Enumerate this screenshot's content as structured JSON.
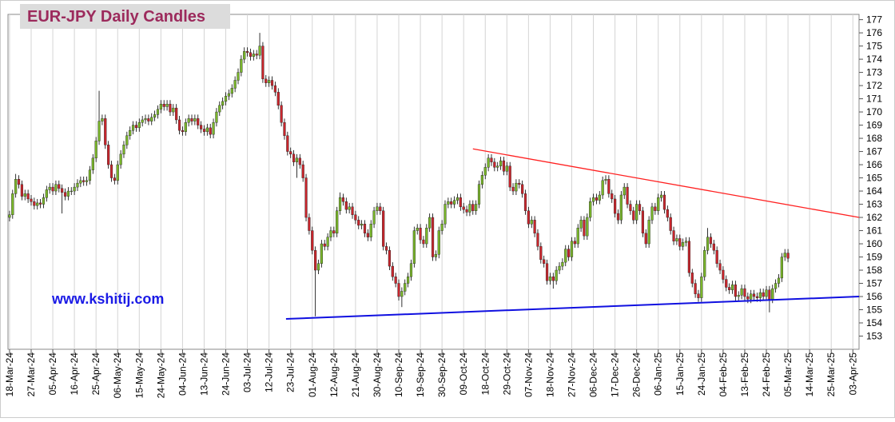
{
  "chart_data": {
    "type": "candlestick",
    "title": "EUR-JPY Daily  Candles",
    "annotation": "www.kshitij.com",
    "up_color": "#79b52a",
    "down_color": "#c8252c",
    "grid": true,
    "ylim": [
      152,
      177.4
    ],
    "yticks": [
      153,
      154,
      155,
      156,
      157,
      158,
      159,
      160,
      161,
      162,
      163,
      164,
      165,
      166,
      167,
      168,
      169,
      170,
      171,
      172,
      173,
      174,
      175,
      176,
      177
    ],
    "xlim": [
      -0.5,
      275
    ],
    "xticks": [
      {
        "value": 0,
        "label": "18-Mar-24"
      },
      {
        "value": 7,
        "label": "27-Mar-24"
      },
      {
        "value": 14,
        "label": "05-Apr-24"
      },
      {
        "value": 21,
        "label": "16-Apr-24"
      },
      {
        "value": 28,
        "label": "25-Apr-24"
      },
      {
        "value": 35,
        "label": "06-May-24"
      },
      {
        "value": 42,
        "label": "15-May-24"
      },
      {
        "value": 49,
        "label": "24-May-24"
      },
      {
        "value": 56,
        "label": "04-Jun-24"
      },
      {
        "value": 63,
        "label": "13-Jun-24"
      },
      {
        "value": 70,
        "label": "24-Jun-24"
      },
      {
        "value": 77,
        "label": "03-Jul-24"
      },
      {
        "value": 84,
        "label": "12-Jul-24"
      },
      {
        "value": 91,
        "label": "23-Jul-24"
      },
      {
        "value": 98,
        "label": "01-Aug-24"
      },
      {
        "value": 105,
        "label": "12-Aug-24"
      },
      {
        "value": 112,
        "label": "21-Aug-24"
      },
      {
        "value": 119,
        "label": "30-Aug-24"
      },
      {
        "value": 126,
        "label": "10-Sep-24"
      },
      {
        "value": 133,
        "label": "19-Sep-24"
      },
      {
        "value": 140,
        "label": "30-Sep-24"
      },
      {
        "value": 147,
        "label": "09-Oct-24"
      },
      {
        "value": 154,
        "label": "18-Oct-24"
      },
      {
        "value": 161,
        "label": "29-Oct-24"
      },
      {
        "value": 168,
        "label": "07-Nov-24"
      },
      {
        "value": 175,
        "label": "18-Nov-24"
      },
      {
        "value": 182,
        "label": "27-Nov-24"
      },
      {
        "value": 189,
        "label": "06-Dec-24"
      },
      {
        "value": 196,
        "label": "17-Dec-24"
      },
      {
        "value": 203,
        "label": "26-Dec-24"
      },
      {
        "value": 210,
        "label": "06-Jan-25"
      },
      {
        "value": 217,
        "label": "15-Jan-25"
      },
      {
        "value": 224,
        "label": "24-Jan-25"
      },
      {
        "value": 231,
        "label": "04-Feb-25"
      },
      {
        "value": 238,
        "label": "13-Feb-25"
      },
      {
        "value": 245,
        "label": "24-Feb-25"
      },
      {
        "value": 252,
        "label": "05-Mar-25"
      },
      {
        "value": 259,
        "label": "14-Mar-25"
      },
      {
        "value": 266,
        "label": "25-Mar-25"
      },
      {
        "value": 273,
        "label": "03-Apr-25"
      }
    ],
    "open": [
      162.0,
      162.2,
      163.8,
      164.9,
      164.5,
      163.6,
      163.8,
      163.4,
      163.2,
      162.9,
      163.1,
      163.0,
      163.5,
      164.1,
      164.3,
      164.0,
      164.5,
      164.2,
      163.9,
      163.6,
      164.0,
      164.0,
      164.3,
      164.6,
      164.8,
      164.7,
      164.8,
      165.6,
      166.5,
      167.8,
      169.3,
      169.5,
      167.5,
      166.0,
      165.0,
      164.8,
      166.0,
      166.8,
      167.5,
      168.2,
      168.6,
      169.0,
      168.8,
      169.2,
      169.4,
      169.5,
      169.3,
      169.6,
      169.8,
      170.2,
      170.6,
      170.4,
      170.6,
      170.0,
      170.3,
      169.4,
      168.6,
      168.5,
      169.2,
      169.5,
      169.3,
      169.5,
      169.0,
      168.7,
      168.5,
      168.8,
      168.3,
      169.2,
      170.0,
      170.5,
      170.8,
      171.2,
      171.4,
      171.8,
      172.4,
      173.0,
      174.0,
      174.6,
      174.5,
      174.2,
      174.4,
      174.3,
      175.0,
      172.5,
      172.2,
      172.4,
      172.0,
      171.5,
      170.5,
      169.2,
      168.2,
      167.0,
      166.8,
      166.2,
      166.5,
      166.0,
      165.0,
      162.0,
      161.0,
      159.5,
      158.0,
      158.5,
      160.0,
      159.8,
      160.5,
      161.0,
      160.8,
      162.5,
      163.5,
      163.2,
      162.6,
      162.8,
      162.2,
      161.8,
      161.4,
      161.5,
      160.8,
      160.5,
      161.5,
      162.5,
      162.8,
      162.5,
      159.8,
      159.5,
      158.3,
      157.5,
      157.0,
      156.0,
      156.4,
      157.0,
      157.5,
      158.5,
      161.0,
      161.2,
      160.3,
      160.0,
      161.2,
      162.0,
      159.0,
      159.2,
      161.0,
      161.5,
      163.0,
      163.2,
      163.0,
      163.3,
      163.5,
      162.8,
      162.6,
      162.4,
      163.0,
      162.5,
      163.0,
      164.5,
      165.2,
      165.8,
      166.5,
      166.2,
      165.8,
      165.9,
      166.3,
      165.5,
      165.9,
      164.3,
      164.0,
      164.6,
      164.5,
      163.8,
      162.5,
      161.5,
      161.8,
      160.8,
      159.8,
      158.8,
      158.5,
      157.2,
      157.5,
      157.2,
      158.0,
      158.3,
      158.6,
      159.6,
      159.0,
      160.2,
      160.0,
      161.2,
      161.8,
      160.6,
      162.0,
      163.2,
      163.5,
      163.3,
      163.7,
      164.8,
      164.9,
      163.8,
      163.4,
      162.3,
      161.8,
      163.7,
      164.3,
      163.0,
      162.5,
      161.8,
      163.0,
      162.5,
      160.8,
      160.0,
      161.8,
      162.8,
      162.5,
      163.5,
      163.7,
      162.6,
      162.0,
      161.0,
      160.2,
      160.4,
      159.8,
      160.1,
      160.2,
      157.8,
      157.0,
      156.2,
      155.9,
      157.5,
      159.5,
      160.5,
      160.0,
      159.5,
      158.5,
      158.0,
      157.3,
      156.7,
      156.5,
      156.9,
      156.0,
      156.1,
      156.6,
      156.0,
      155.8,
      156.2,
      156.0,
      155.9,
      156.3,
      156.0,
      156.5,
      155.8,
      156.6,
      157.0,
      157.4,
      159.0,
      159.3
    ],
    "high": [
      162.5,
      164.1,
      165.3,
      165.2,
      164.8,
      164.1,
      164.1,
      163.7,
      163.5,
      163.4,
      163.4,
      163.8,
      164.4,
      164.6,
      164.6,
      164.8,
      164.8,
      164.5,
      164.2,
      164.3,
      164.3,
      164.6,
      164.9,
      165.1,
      165.1,
      165.1,
      165.9,
      166.8,
      168.1,
      171.6,
      169.8,
      169.8,
      167.8,
      166.3,
      165.3,
      166.3,
      167.1,
      167.8,
      168.5,
      168.9,
      169.3,
      169.3,
      169.5,
      169.7,
      169.8,
      169.8,
      169.9,
      170.1,
      170.5,
      170.9,
      170.9,
      170.9,
      170.9,
      170.6,
      170.6,
      169.7,
      168.9,
      169.5,
      169.8,
      169.8,
      169.8,
      169.8,
      169.3,
      169.0,
      169.1,
      169.1,
      169.5,
      170.3,
      170.8,
      171.1,
      171.5,
      171.7,
      172.1,
      172.7,
      173.3,
      174.3,
      174.9,
      174.9,
      174.8,
      174.7,
      174.7,
      176.0,
      175.3,
      172.8,
      172.7,
      172.7,
      172.3,
      171.8,
      170.8,
      169.5,
      168.5,
      167.3,
      167.1,
      166.8,
      166.8,
      166.3,
      165.3,
      162.3,
      161.3,
      159.8,
      158.8,
      160.3,
      160.3,
      160.8,
      161.3,
      161.3,
      162.8,
      163.9,
      163.8,
      163.5,
      163.1,
      163.1,
      162.5,
      162.1,
      161.8,
      161.8,
      161.1,
      161.8,
      162.8,
      163.1,
      163.1,
      162.8,
      160.1,
      159.8,
      158.6,
      157.8,
      157.3,
      156.7,
      157.3,
      157.8,
      158.8,
      161.3,
      161.5,
      161.5,
      160.6,
      161.5,
      162.3,
      162.3,
      159.5,
      161.3,
      161.8,
      163.3,
      163.5,
      163.5,
      163.6,
      163.8,
      163.8,
      163.1,
      162.9,
      163.3,
      163.3,
      163.3,
      164.8,
      165.5,
      166.1,
      166.8,
      166.8,
      166.5,
      166.2,
      166.6,
      166.6,
      166.2,
      166.2,
      164.6,
      164.9,
      164.9,
      164.8,
      164.1,
      162.8,
      162.1,
      162.1,
      161.1,
      160.1,
      159.1,
      158.8,
      157.8,
      157.8,
      158.3,
      158.6,
      158.9,
      159.9,
      159.9,
      160.5,
      160.5,
      161.5,
      162.1,
      162.1,
      162.3,
      163.5,
      163.8,
      163.8,
      164.0,
      165.1,
      165.2,
      165.2,
      164.1,
      163.7,
      162.6,
      164.0,
      164.6,
      164.6,
      163.3,
      162.8,
      163.3,
      163.3,
      162.8,
      161.1,
      162.1,
      163.1,
      163.1,
      163.8,
      164.0,
      164.0,
      162.9,
      162.3,
      161.3,
      160.7,
      160.7,
      160.4,
      160.5,
      160.5,
      158.1,
      157.3,
      156.5,
      157.8,
      159.8,
      161.2,
      160.8,
      160.3,
      159.8,
      158.8,
      158.3,
      157.6,
      157.0,
      157.2,
      157.2,
      156.4,
      156.9,
      156.9,
      156.3,
      156.5,
      156.5,
      156.3,
      156.6,
      156.6,
      156.8,
      156.8,
      156.9,
      157.3,
      157.7,
      159.3,
      159.6,
      159.6
    ],
    "low": [
      161.7,
      161.9,
      163.5,
      164.2,
      163.3,
      163.3,
      163.1,
      162.9,
      162.6,
      162.6,
      162.7,
      162.7,
      163.2,
      163.8,
      163.7,
      163.7,
      163.9,
      162.3,
      163.3,
      163.3,
      163.7,
      163.7,
      164.0,
      164.3,
      164.4,
      164.4,
      164.5,
      165.3,
      166.2,
      167.5,
      169.0,
      167.2,
      165.7,
      164.7,
      164.5,
      164.5,
      165.7,
      166.5,
      167.2,
      167.9,
      168.3,
      168.5,
      168.5,
      168.9,
      169.1,
      169.0,
      169.0,
      169.3,
      169.5,
      169.9,
      170.1,
      170.1,
      169.7,
      169.7,
      169.1,
      168.3,
      168.2,
      168.2,
      168.9,
      169.0,
      169.0,
      168.7,
      168.4,
      168.2,
      168.2,
      168.0,
      168.0,
      168.9,
      169.7,
      170.2,
      170.5,
      170.9,
      171.1,
      171.5,
      172.1,
      172.7,
      173.7,
      174.2,
      173.9,
      173.9,
      174.0,
      174.0,
      172.2,
      171.9,
      171.9,
      171.7,
      171.2,
      170.2,
      168.9,
      167.9,
      166.7,
      166.5,
      165.9,
      165.0,
      165.7,
      164.7,
      161.7,
      160.7,
      159.2,
      154.5,
      157.7,
      158.2,
      159.5,
      159.5,
      160.2,
      160.5,
      160.5,
      162.2,
      162.9,
      162.3,
      162.3,
      161.9,
      161.5,
      161.1,
      161.1,
      160.5,
      160.2,
      160.2,
      161.2,
      162.2,
      162.2,
      159.5,
      159.2,
      158.0,
      157.2,
      156.7,
      155.7,
      155.2,
      156.1,
      156.7,
      157.2,
      158.2,
      160.7,
      160.0,
      159.7,
      159.7,
      160.9,
      158.7,
      158.7,
      158.9,
      160.7,
      161.2,
      162.7,
      162.7,
      162.7,
      163.0,
      162.5,
      162.3,
      162.1,
      162.1,
      162.2,
      162.2,
      162.7,
      164.2,
      164.9,
      165.5,
      165.9,
      165.5,
      165.5,
      165.6,
      165.2,
      165.2,
      164.0,
      163.7,
      163.7,
      164.2,
      163.5,
      162.2,
      161.2,
      161.2,
      160.5,
      159.5,
      158.5,
      158.2,
      156.9,
      156.9,
      156.6,
      156.9,
      157.7,
      158.0,
      158.3,
      158.7,
      158.7,
      159.7,
      159.7,
      160.9,
      160.3,
      160.3,
      161.7,
      162.9,
      163.0,
      163.0,
      163.4,
      164.5,
      163.5,
      163.1,
      162.0,
      161.5,
      161.5,
      163.4,
      162.7,
      162.2,
      161.5,
      161.5,
      162.2,
      160.5,
      159.7,
      159.7,
      161.5,
      162.2,
      162.2,
      163.2,
      162.3,
      161.7,
      160.7,
      159.9,
      159.9,
      159.5,
      159.5,
      159.8,
      157.5,
      156.7,
      155.9,
      155.6,
      155.6,
      157.2,
      159.2,
      159.7,
      159.2,
      158.2,
      157.7,
      157.0,
      156.4,
      156.2,
      156.2,
      155.7,
      155.7,
      155.8,
      155.7,
      155.5,
      155.5,
      155.7,
      155.6,
      155.6,
      155.7,
      155.7,
      154.8,
      155.5,
      156.3,
      156.7,
      157.1,
      158.7,
      158.6
    ],
    "close": [
      162.2,
      163.8,
      164.9,
      164.5,
      163.6,
      163.8,
      163.4,
      163.2,
      162.9,
      163.1,
      163.0,
      163.5,
      164.1,
      164.3,
      164.0,
      164.5,
      164.2,
      163.9,
      163.6,
      164.0,
      164.0,
      164.3,
      164.6,
      164.8,
      164.7,
      164.8,
      165.6,
      166.5,
      167.8,
      169.3,
      169.5,
      167.5,
      166.0,
      165.0,
      164.8,
      166.0,
      166.8,
      167.5,
      168.2,
      168.6,
      169.0,
      168.8,
      169.2,
      169.4,
      169.5,
      169.3,
      169.6,
      169.8,
      170.2,
      170.6,
      170.4,
      170.6,
      170.0,
      170.3,
      169.4,
      168.6,
      168.5,
      169.2,
      169.5,
      169.3,
      169.5,
      169.0,
      168.7,
      168.5,
      168.8,
      168.3,
      169.2,
      170.0,
      170.5,
      170.8,
      171.2,
      171.4,
      171.8,
      172.4,
      173.0,
      174.0,
      174.6,
      174.5,
      174.2,
      174.4,
      174.3,
      175.0,
      172.5,
      172.2,
      172.4,
      172.0,
      171.5,
      170.5,
      169.2,
      168.2,
      167.0,
      166.8,
      166.2,
      166.5,
      166.0,
      165.0,
      162.0,
      161.0,
      159.5,
      158.0,
      158.5,
      160.0,
      159.8,
      160.5,
      161.0,
      160.8,
      162.5,
      163.5,
      163.2,
      162.6,
      162.8,
      162.2,
      161.8,
      161.4,
      161.5,
      160.8,
      160.5,
      161.5,
      162.5,
      162.8,
      162.5,
      159.8,
      159.5,
      158.3,
      157.5,
      157.0,
      156.0,
      156.4,
      157.0,
      157.5,
      158.5,
      161.0,
      161.2,
      160.3,
      160.0,
      161.2,
      162.0,
      159.0,
      159.2,
      161.0,
      161.5,
      163.0,
      163.2,
      163.0,
      163.3,
      163.5,
      162.8,
      162.6,
      162.4,
      163.0,
      162.5,
      163.0,
      164.5,
      165.2,
      165.8,
      166.5,
      166.2,
      165.8,
      165.9,
      166.3,
      165.5,
      165.9,
      164.3,
      164.0,
      164.6,
      164.5,
      163.8,
      162.5,
      161.5,
      161.8,
      160.8,
      159.8,
      158.8,
      158.5,
      157.2,
      157.5,
      157.2,
      158.0,
      158.3,
      158.6,
      159.6,
      159.0,
      160.2,
      160.0,
      161.2,
      161.8,
      160.6,
      162.0,
      163.2,
      163.5,
      163.3,
      163.7,
      164.8,
      164.9,
      163.8,
      163.4,
      162.3,
      161.8,
      163.7,
      164.3,
      163.0,
      162.5,
      161.8,
      163.0,
      162.5,
      160.8,
      160.0,
      161.8,
      162.8,
      162.5,
      163.5,
      163.7,
      162.6,
      162.0,
      161.0,
      160.2,
      160.4,
      159.8,
      160.1,
      160.2,
      157.8,
      157.0,
      156.2,
      155.9,
      157.5,
      159.5,
      160.5,
      160.0,
      159.5,
      158.5,
      158.0,
      157.3,
      156.7,
      156.5,
      156.9,
      156.0,
      156.1,
      156.6,
      156.0,
      155.8,
      156.2,
      156.0,
      155.9,
      156.3,
      156.0,
      156.5,
      155.8,
      156.6,
      157.0,
      157.4,
      159.0,
      159.3,
      158.9
    ],
    "trendlines": [
      {
        "color": "#ff2020",
        "x": [
          150,
          275
        ],
        "y": [
          167.2,
          162.0
        ]
      },
      {
        "color": "#1010e0",
        "x": [
          89.5,
          275
        ],
        "y": [
          154.3,
          156.0
        ]
      }
    ]
  }
}
